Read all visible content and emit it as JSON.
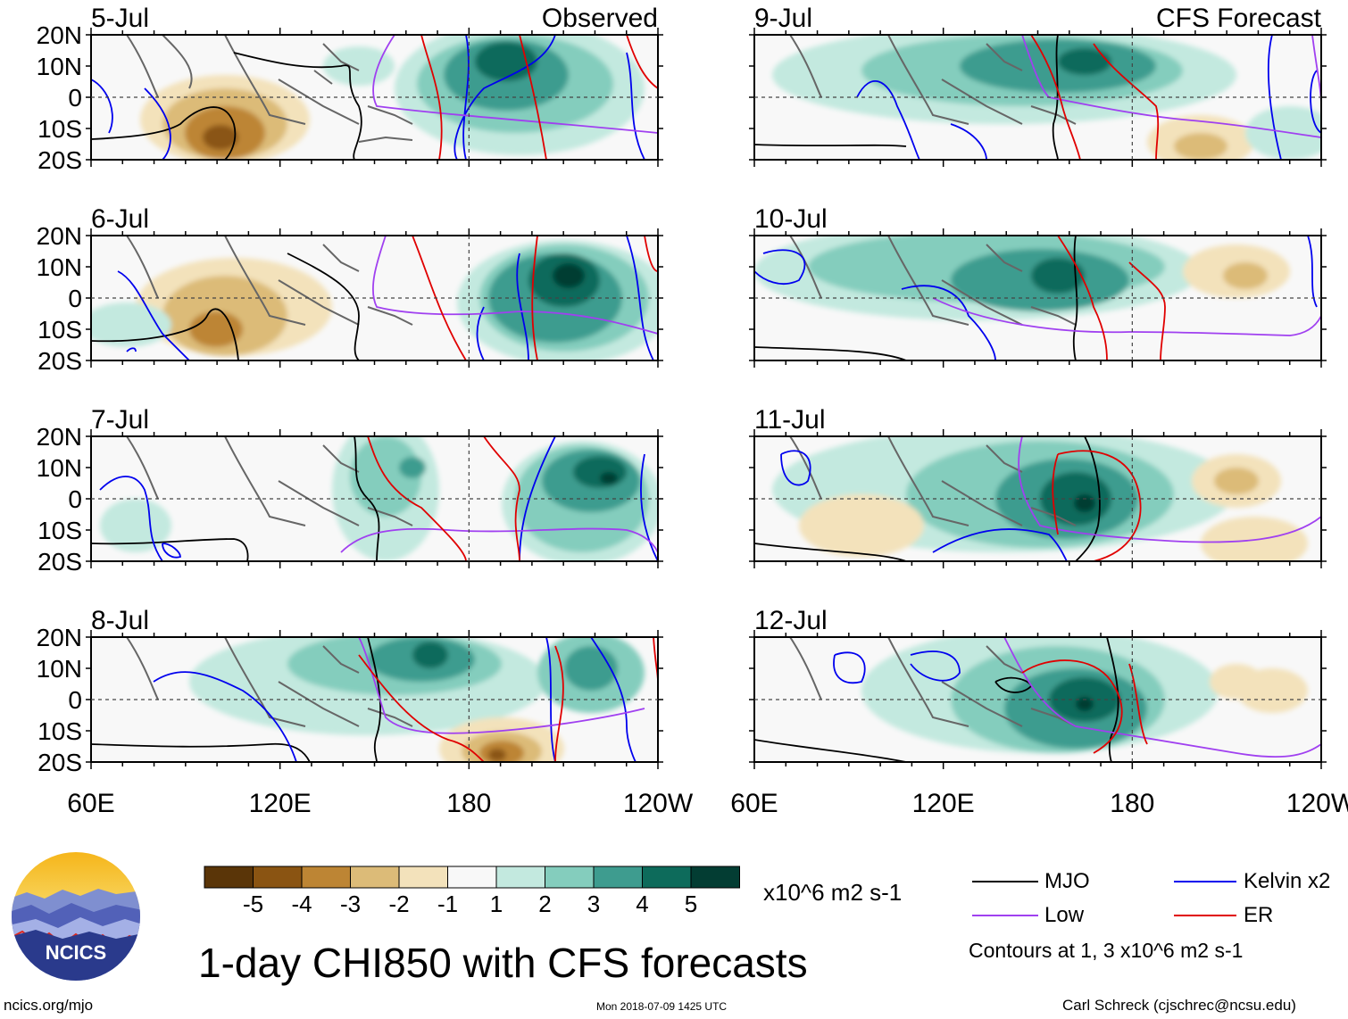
{
  "titles": {
    "observed": "Observed",
    "forecast": "CFS Forecast"
  },
  "panels": {
    "observed": [
      {
        "date": "5-Jul"
      },
      {
        "date": "6-Jul"
      },
      {
        "date": "7-Jul"
      },
      {
        "date": "8-Jul"
      }
    ],
    "forecast": [
      {
        "date": "9-Jul"
      },
      {
        "date": "10-Jul"
      },
      {
        "date": "11-Jul"
      },
      {
        "date": "12-Jul"
      }
    ]
  },
  "lat_labels": [
    "20N",
    "10N",
    "0",
    "10S",
    "20S"
  ],
  "lon_labels": [
    "60E",
    "120E",
    "180",
    "120W"
  ],
  "colorbar": {
    "tick_labels": [
      "-5",
      "-4",
      "-3",
      "-2",
      "-1",
      "1",
      "2",
      "3",
      "4",
      "5"
    ],
    "colors": [
      "#5a3508",
      "#8a5412",
      "#bd8534",
      "#dcbb78",
      "#f3e2bb",
      "#f8f8f8",
      "#c3e9df",
      "#84cdbd",
      "#3e9c8f",
      "#0d6b5b",
      "#033d33"
    ],
    "units": "x10^6 m2 s-1"
  },
  "legend": {
    "items": [
      {
        "label": "MJO",
        "color": "#000000"
      },
      {
        "label": "Kelvin x2",
        "color": "#0000ee"
      },
      {
        "label": "Low",
        "color": "#a040f0"
      },
      {
        "label": "ER",
        "color": "#e00000"
      }
    ],
    "contour_note": "Contours at 1, 3 x10^6 m2 s-1"
  },
  "main_title": "1-day CHI850 with CFS forecasts",
  "logo_text": "NCICS",
  "site": "ncics.org/mjo",
  "timestamp": "Mon 2018-07-09 1425 UTC",
  "credit": "Carl Schreck (cjschrec@ncsu.edu)"
}
